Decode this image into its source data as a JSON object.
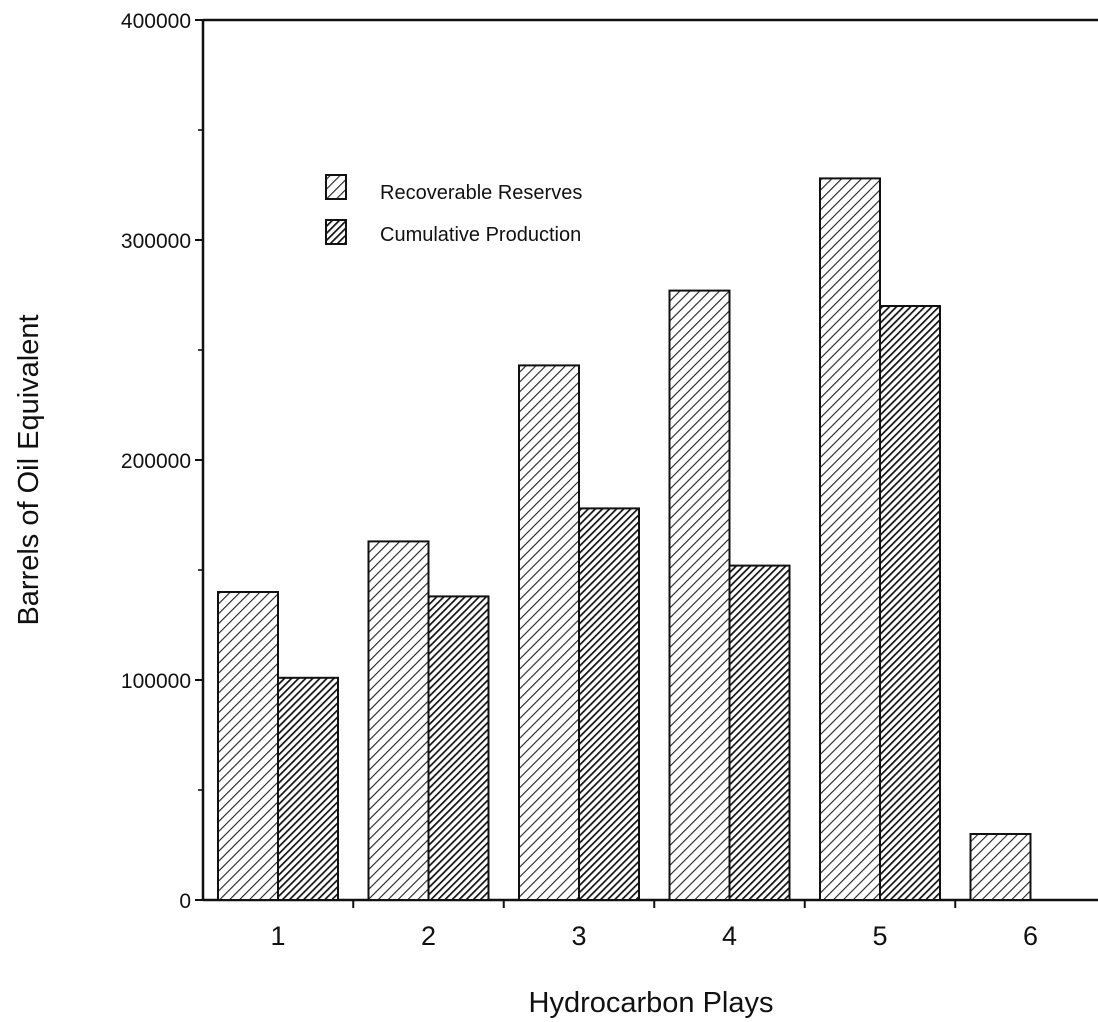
{
  "chart_data": {
    "type": "bar",
    "title": "",
    "xlabel": "Hydrocarbon  Plays",
    "ylabel": "Barrels  of  Oil  Equivalent",
    "categories": [
      "1",
      "2",
      "3",
      "4",
      "5",
      "6"
    ],
    "series": [
      {
        "name": "Recoverable Reserves",
        "values": [
          140000,
          163000,
          243000,
          277000,
          328000,
          30000
        ],
        "color": "#d9d9d9",
        "pattern": "light-hatch"
      },
      {
        "name": "Cumulative Production",
        "values": [
          101000,
          138000,
          178000,
          152000,
          270000,
          null
        ],
        "color": "#4a4a4a",
        "pattern": "dark-hatch"
      }
    ],
    "ylim": [
      0,
      400000
    ],
    "yticks": [
      0,
      100000,
      200000,
      300000,
      400000
    ],
    "ytick_labels": [
      "0",
      "100000",
      "200000",
      "300000",
      "400000"
    ],
    "grid": false,
    "legend_position": "top-left"
  }
}
